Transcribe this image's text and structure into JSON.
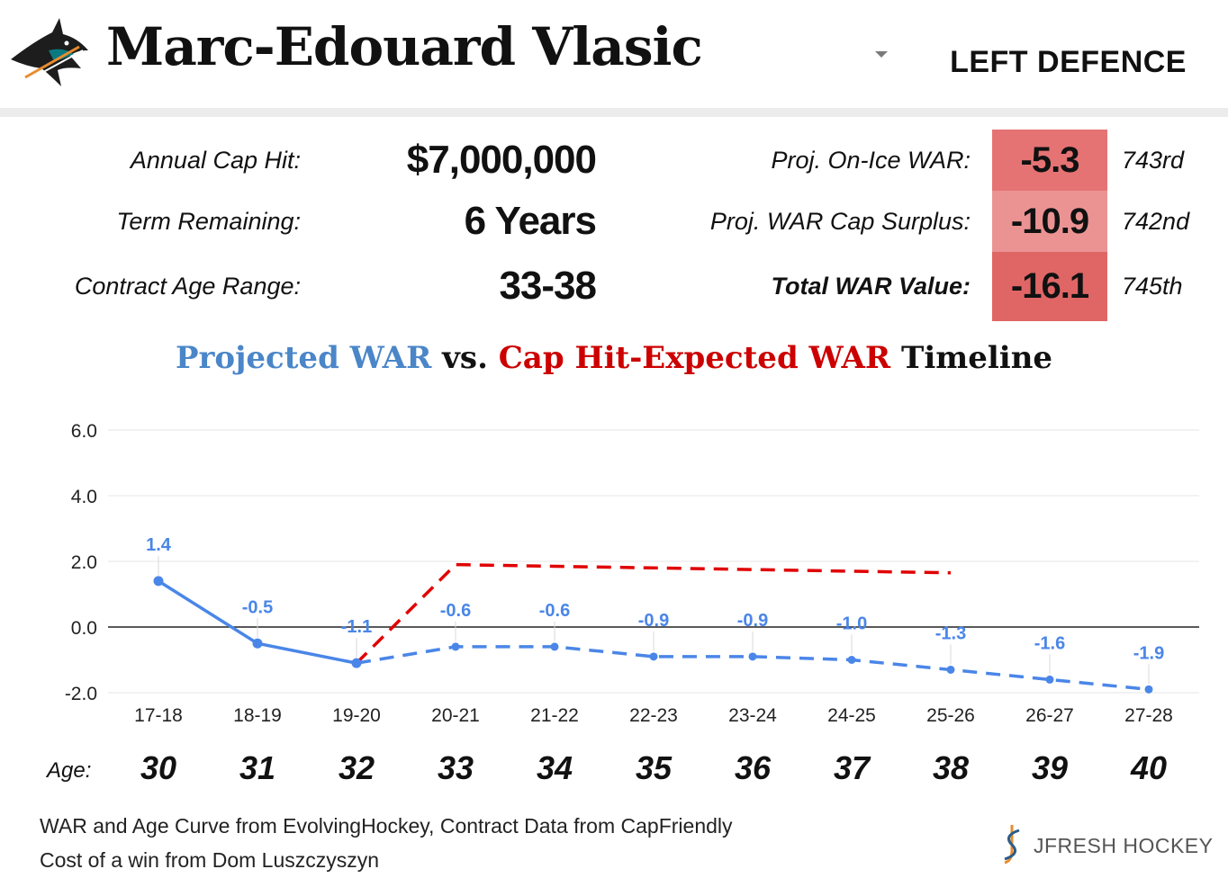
{
  "header": {
    "player_name": "Marc-Edouard Vlasic",
    "position": "LEFT DEFENCE",
    "logo_icon": "sharks-logo-icon",
    "dropdown_icon": "caret-down-icon"
  },
  "contract": {
    "cap_hit_label": "Annual Cap Hit:",
    "cap_hit_value": "$7,000,000",
    "term_label": "Term Remaining:",
    "term_value": "6 Years",
    "age_range_label": "Contract Age Range:",
    "age_range_value": "33-38"
  },
  "war": {
    "on_ice_label": "Proj. On-Ice WAR:",
    "on_ice_value": "-5.3",
    "on_ice_rank": "743rd",
    "surplus_label": "Proj. WAR Cap Surplus:",
    "surplus_value": "-10.9",
    "surplus_rank": "742nd",
    "total_label": "Total WAR Value:",
    "total_value": "-16.1",
    "total_rank": "745th",
    "colors": {
      "on_ice": "#e57373",
      "surplus": "#eb9393",
      "total": "#e06666"
    }
  },
  "chart_title": {
    "part1": "Projected WAR",
    "part2": " vs. ",
    "part3": "Cap Hit-Expected WAR",
    "part4": " Timeline",
    "color_blue": "#4a86c8",
    "color_red": "#cc0000"
  },
  "chart_data": {
    "type": "line",
    "categories": [
      "17-18",
      "18-19",
      "19-20",
      "20-21",
      "21-22",
      "22-23",
      "23-24",
      "24-25",
      "25-26",
      "26-27",
      "27-28"
    ],
    "y_ticks": [
      "6.0",
      "4.0",
      "2.0",
      "0.0",
      "-2.0"
    ],
    "ylim": [
      -2.0,
      6.0
    ],
    "grid": true,
    "series": [
      {
        "role": "projected",
        "color": "#4a86e8",
        "values": [
          1.4,
          -0.5,
          -1.1,
          -0.6,
          -0.6,
          -0.9,
          -0.9,
          -1.0,
          -1.3,
          -1.6,
          -1.9
        ],
        "labels": [
          "1.4",
          "-0.5",
          "-1.1",
          "-0.6",
          "-0.6",
          "-0.9",
          "-0.9",
          "-1.0",
          "-1.3",
          "-1.6",
          "-1.9"
        ],
        "solid_through_index": 2
      },
      {
        "role": "expected",
        "color": "#e00000",
        "values": [
          null,
          null,
          -1.1,
          1.9,
          1.85,
          1.8,
          1.75,
          1.7,
          1.65,
          null,
          null
        ],
        "dashed": true
      }
    ]
  },
  "ages": {
    "label": "Age:",
    "values": [
      "30",
      "31",
      "32",
      "33",
      "34",
      "35",
      "36",
      "37",
      "38",
      "39",
      "40"
    ]
  },
  "credits": {
    "line1": "WAR and Age Curve from EvolvingHockey, Contract Data from CapFriendly",
    "line2": "Cost of a win from Dom Luszczyszyn",
    "brand": "JFRESH HOCKEY",
    "brand_icon": "jfresh-logo-icon"
  }
}
